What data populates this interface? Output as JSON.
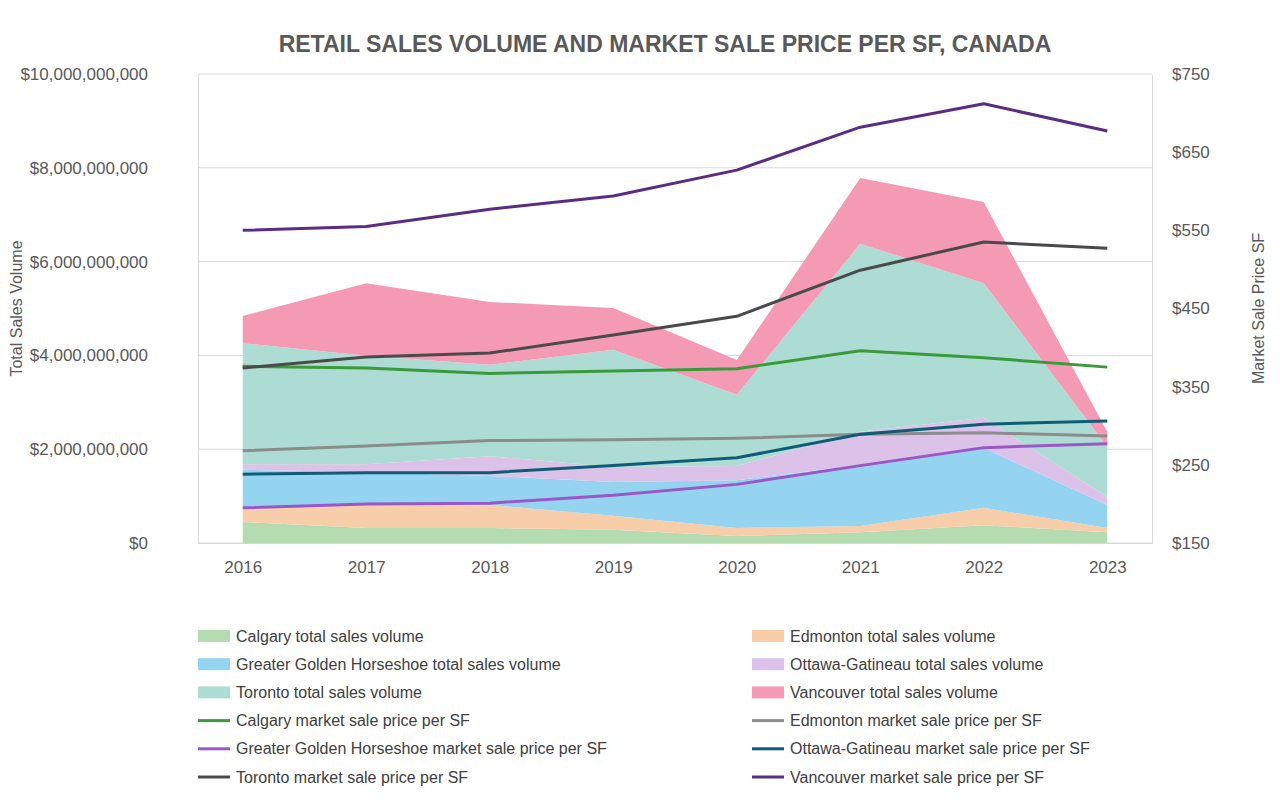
{
  "chart_data": {
    "type": "area",
    "title": "RETAIL SALES VOLUME AND MARKET SALE PRICE PER SF, CANADA",
    "y_label": "Total Sales Volume",
    "y2_label": "Market Sale Price SF",
    "categories": [
      "2016",
      "2017",
      "2018",
      "2019",
      "2020",
      "2021",
      "2022",
      "2023"
    ],
    "stacked": true,
    "grid": true,
    "legend": "bottom",
    "ylim": [
      0,
      10000000000
    ],
    "yticks": [
      {
        "value": 0,
        "label": "$0"
      },
      {
        "value": 2000000000,
        "label": "$2,000,000,000"
      },
      {
        "value": 4000000000,
        "label": "$4,000,000,000"
      },
      {
        "value": 6000000000,
        "label": "$6,000,000,000"
      },
      {
        "value": 8000000000,
        "label": "$8,000,000,000"
      },
      {
        "value": 10000000000,
        "label": "$10,000,000,000"
      }
    ],
    "y2lim": [
      150,
      750
    ],
    "y2ticks": [
      {
        "value": 150,
        "label": "$150"
      },
      {
        "value": 250,
        "label": "$250"
      },
      {
        "value": 350,
        "label": "$350"
      },
      {
        "value": 450,
        "label": "$450"
      },
      {
        "value": 550,
        "label": "$550"
      },
      {
        "value": 650,
        "label": "$650"
      },
      {
        "value": 750,
        "label": "$750"
      }
    ],
    "series": [
      {
        "name": "Calgary total sales volume",
        "type": "area",
        "color": "#b5dcb1",
        "values": [
          450000000,
          320000000,
          320000000,
          280000000,
          150000000,
          230000000,
          380000000,
          230000000
        ]
      },
      {
        "name": "Edmonton total sales volume",
        "type": "area",
        "color": "#f8cdaa",
        "values": [
          320000000,
          490000000,
          490000000,
          300000000,
          170000000,
          130000000,
          370000000,
          90000000
        ]
      },
      {
        "name": "Greater Golden Horseshoe total sales volume",
        "type": "area",
        "color": "#95d4f0",
        "values": [
          790000000,
          700000000,
          620000000,
          720000000,
          1020000000,
          1300000000,
          1280000000,
          490000000
        ]
      },
      {
        "name": "Ottawa-Gatineau total sales volume",
        "type": "area",
        "color": "#dcc2e8",
        "values": [
          120000000,
          170000000,
          420000000,
          320000000,
          300000000,
          710000000,
          640000000,
          170000000
        ]
      },
      {
        "name": "Toronto total sales volume",
        "type": "area",
        "color": "#acdcd3",
        "values": [
          2580000000,
          2310000000,
          1950000000,
          2500000000,
          1520000000,
          4010000000,
          2870000000,
          1070000000
        ]
      },
      {
        "name": "Vancouver total sales volume",
        "type": "area",
        "color": "#f49ab4",
        "values": [
          580000000,
          1550000000,
          1340000000,
          890000000,
          740000000,
          1400000000,
          1730000000,
          320000000
        ]
      },
      {
        "name": "Calgary market sale price per SF",
        "type": "line",
        "axis": "y2",
        "color": "#3b9b3b",
        "values": [
          376,
          374,
          367,
          370,
          373,
          396,
          387,
          375
        ]
      },
      {
        "name": "Edmonton market sale price per SF",
        "type": "line",
        "axis": "y2",
        "color": "#8c8c8c",
        "values": [
          268,
          274,
          281,
          282,
          284,
          289,
          291,
          287
        ]
      },
      {
        "name": "Greater Golden Horseshoe market sale price per SF",
        "type": "line",
        "axis": "y2",
        "color": "#9b57c8",
        "values": [
          195,
          200,
          201,
          211,
          225,
          249,
          272,
          277
        ]
      },
      {
        "name": "Ottawa-Gatineau market sale price per SF",
        "type": "line",
        "axis": "y2",
        "color": "#0e5d76",
        "values": [
          238,
          240,
          240,
          249,
          259,
          289,
          302,
          306
        ]
      },
      {
        "name": "Toronto market sale price per SF",
        "type": "line",
        "axis": "y2",
        "color": "#4a4a4a",
        "values": [
          374,
          388,
          393,
          416,
          440,
          499,
          535,
          527
        ]
      },
      {
        "name": "Vancouver market sale price per SF",
        "type": "line",
        "axis": "y2",
        "color": "#5b2c83",
        "values": [
          550,
          555,
          577,
          594,
          627,
          682,
          712,
          677
        ]
      }
    ]
  }
}
